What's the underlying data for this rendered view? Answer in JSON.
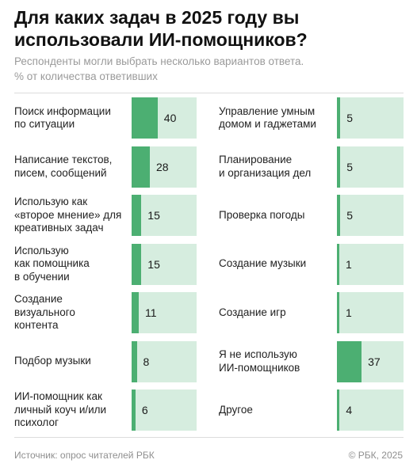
{
  "header": {
    "title": "Для каких задач в 2025 году вы использовали ИИ-помощников?",
    "subtitle_line1": "Респонденты могли выбрать несколько вариантов ответа.",
    "subtitle_line2": "% от количества ответивших"
  },
  "footer": {
    "source": "Источник: опрос читателей РБК",
    "copyright": "© РБК, 2025"
  },
  "colors": {
    "bar_fill": "#4caf72",
    "bar_track": "#d6eddf",
    "divider": "#dcdcdc"
  },
  "chart_data": {
    "type": "bar",
    "title": "Для каких задач в 2025 году вы использовали ИИ-помощников?",
    "unit": "% от количества ответивших",
    "xlim": [
      0,
      100
    ],
    "grid": false,
    "categories": [
      "Поиск информации\nпо ситуации",
      "Написание текстов,\nписем, сообщений",
      "Использую как\n«второе мнение» для\nкреативных задач",
      "Использую\nкак помощника\nв обучении",
      "Создание\nвизуального\nконтента",
      "Подбор музыки",
      "ИИ-помощник как\nличный коуч и/или\nпсихолог",
      "Управление умным\nдомом и гаджетами",
      "Планирование\nи организация дел",
      "Проверка погоды",
      "Создание музыки",
      "Создание игр",
      "Я не использую\nИИ-помощников",
      "Другое"
    ],
    "values": [
      40,
      28,
      15,
      15,
      11,
      8,
      6,
      5,
      5,
      5,
      1,
      1,
      37,
      4
    ],
    "labels": [
      "40",
      "28",
      "15",
      "15",
      "11",
      "8",
      "6",
      "5",
      "5",
      "5",
      "1",
      "1",
      "37",
      "4"
    ]
  }
}
